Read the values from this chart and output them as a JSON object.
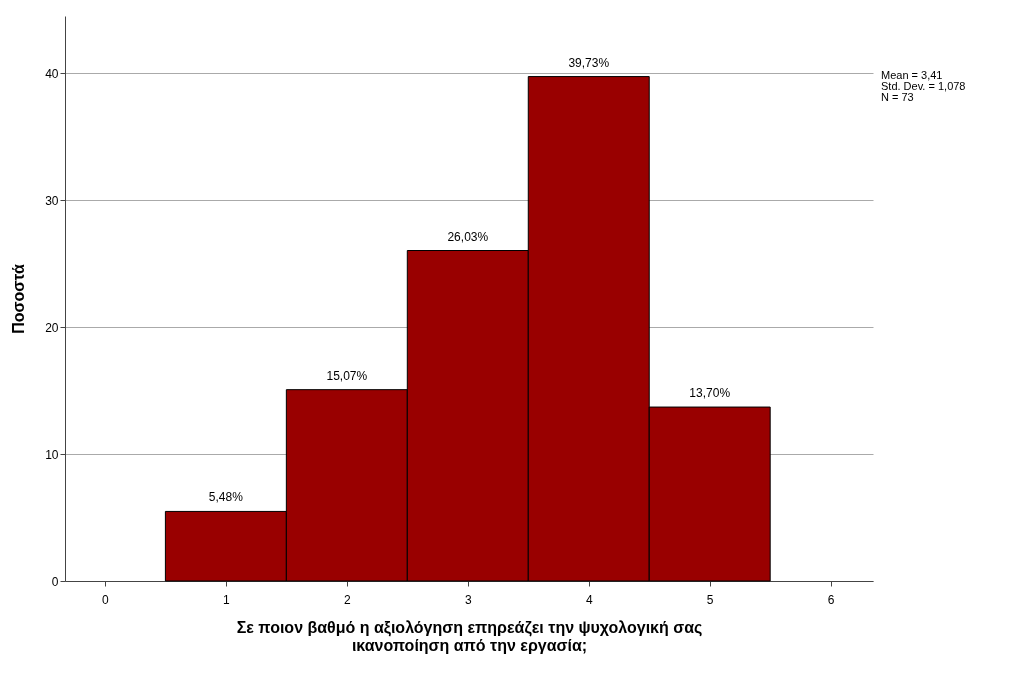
{
  "chart_data": {
    "type": "histogram",
    "bins": [
      0.5,
      1.5,
      2.5,
      3.5,
      4.5,
      5.5
    ],
    "values": [
      5.48,
      15.07,
      26.03,
      39.73,
      13.7
    ],
    "value_labels": [
      "5,48%",
      "15,07%",
      "26,03%",
      "39,73%",
      "13,70%"
    ],
    "color": "#990000",
    "xlim": [
      -0.33,
      6.35
    ],
    "xticks": [
      0,
      1,
      2,
      3,
      4,
      5,
      6
    ],
    "ylim": [
      0,
      44.5
    ],
    "yticks": [
      0,
      10,
      20,
      30,
      40
    ],
    "grid": "y",
    "xlabel": "Σε ποιον βαθμό η αξιολόγηση επηρεάζει την ψυχολογική σας ικανοποίηση από την εργασία;",
    "ylabel": "Ποσοστά",
    "annotations": [
      "Mean = 3,41",
      "Std. Dev. = 1,078",
      "N = 73"
    ]
  }
}
